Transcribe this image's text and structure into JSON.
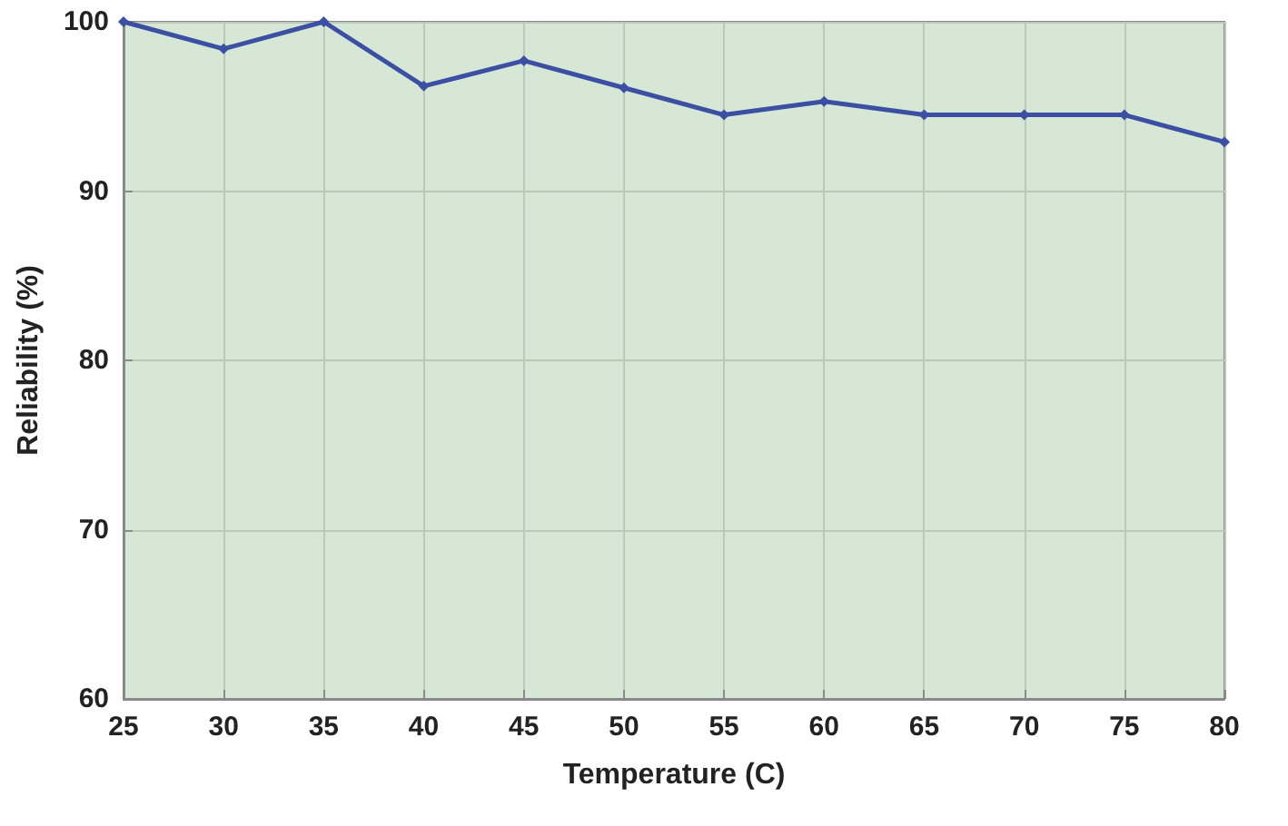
{
  "chart_data": {
    "type": "line",
    "xlabel": "Temperature (C)",
    "ylabel": "Reliability (%)",
    "x": [
      25,
      30,
      35,
      40,
      45,
      50,
      55,
      60,
      65,
      70,
      75,
      80
    ],
    "series": [
      {
        "color": "#3b4fa3",
        "values": [
          100,
          98.4,
          100,
          96.2,
          97.7,
          96.1,
          94.5,
          95.3,
          94.5,
          94.5,
          94.5,
          92.9
        ]
      }
    ],
    "xlim": [
      25,
      80
    ],
    "xticks": [
      25,
      30,
      35,
      40,
      45,
      50,
      55,
      60,
      65,
      70,
      75,
      80
    ],
    "ylim": [
      60,
      100
    ],
    "yticks": [
      60,
      70,
      80,
      90,
      100
    ],
    "grid": true,
    "marker": "diamond",
    "line_style": "solid"
  }
}
